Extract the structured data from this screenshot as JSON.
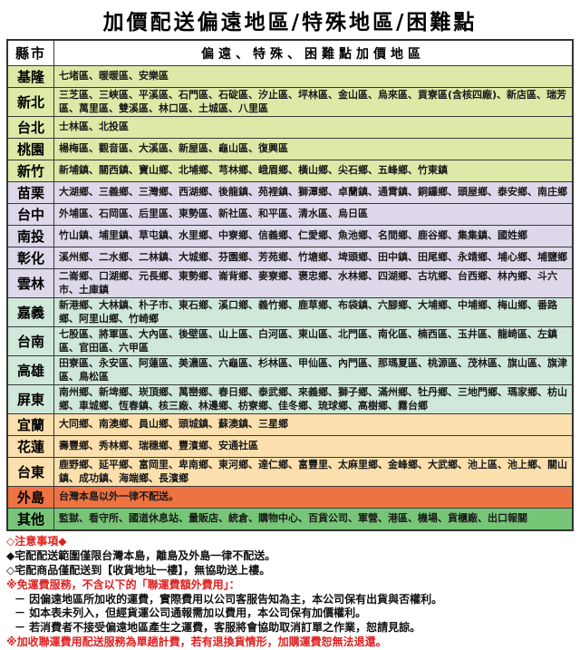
{
  "title": "加價配送偏遠地區/特殊地區/困難點",
  "colors": {
    "green_yellow": "#dde9a7",
    "lavender": "#ded8ea",
    "mint": "#cfe8da",
    "cream": "#fbe0ae",
    "orange": "#ee7342",
    "green": "#77c678",
    "header_bg": "#ffffff",
    "note_red": "#e02121",
    "border": "#3a3a3a"
  },
  "table": {
    "header": {
      "county_col": "縣市",
      "areas_col": "偏遠、特殊、困難點加價地區"
    },
    "rows": [
      {
        "county": "基隆",
        "group": "green_yellow",
        "areas": "七堵區、暖暖區、安樂區"
      },
      {
        "county": "新北",
        "group": "green_yellow",
        "areas": "三芝區、三峽區、平溪區、石門區、石碇區、汐止區、坪林區、金山區、烏來區、貢寮區(含核四廠)、新店區、瑞芳區、萬里區、雙溪區、林口區、土城區、八里區"
      },
      {
        "county": "台北",
        "group": "green_yellow",
        "areas": "士林區、北投區"
      },
      {
        "county": "桃園",
        "group": "green_yellow",
        "areas": "楊梅區、觀音區、大溪區、新屋區、龜山區、復興區"
      },
      {
        "county": "新竹",
        "group": "green_yellow",
        "areas": "新埔鎮、關西鎮、寶山鄉、北埔鄉、芎林鄉、峨眉鄉、橫山鄉、尖石鄉、五峰鄉、竹東鎮"
      },
      {
        "county": "苗栗",
        "group": "lavender",
        "areas": "大湖鄉、三義鄉、三灣鄉、西湖鄉、後龍鎮、苑裡鎮、獅潭鄉、卓蘭鎮、通霄鎮、銅鑼鄉、頭屋鄉、泰安鄉、南庄鄉"
      },
      {
        "county": "台中",
        "group": "lavender",
        "areas": "外埔區、石岡區、后里區、東勢區、新社區、和平區、清水區、烏日區"
      },
      {
        "county": "南投",
        "group": "lavender",
        "areas": "竹山鎮、埔里鎮、草屯鎮、水里鄉、中寮鄉、信義鄉、仁愛鄉、魚池鄉、名間鄉、鹿谷鄉、集集鎮、國姓鄉"
      },
      {
        "county": "彰化",
        "group": "lavender",
        "areas": "溪州鄉、二水鄉、二林鎮、大城鄉、芬園鄉、芳苑鄉、竹塘鄉、埤頭鄉、田中鎮、田尾鄉、永靖鄉、埔心鄉、埔鹽鄉"
      },
      {
        "county": "雲林",
        "group": "lavender",
        "areas": "二崙鄉、口湖鄉、元長鄉、東勢鄉、崙背鄉、麥寮鄉、褒忠鄉、水林鄉、四湖鄉、古坑鄉、台西鄉、林內鄉、斗六市、土庫鎮"
      },
      {
        "county": "嘉義",
        "group": "mint",
        "areas": "新港鄉、大林鎮、朴子市、東石鄉、溪口鄉、義竹鄉、鹿草鄉、布袋鎮、六腳鄉、大埔鄉、中埔鄉、梅山鄉、番路鄉、阿里山鄉、竹崎鄉"
      },
      {
        "county": "台南",
        "group": "mint",
        "areas": "七股區、將軍區、大內區、後壁區、山上區、白河區、東山區、北門區、南化區、楠西區、玉井區、龍崎區、左鎮區、官田區、六甲區"
      },
      {
        "county": "高雄",
        "group": "mint",
        "areas": "田寮區、永安區、阿蓮區、美濃區、六龜區、杉林區、甲仙區、內門區、那瑪夏區、桃源區、茂林區、旗山區、旗津區、鳥松區"
      },
      {
        "county": "屏東",
        "group": "mint",
        "areas": "南州鄉、新埤鄉、崁頂鄉、萬巒鄉、春日鄉、泰武鄉、來義鄉、獅子鄉、滿州鄉、牡丹鄉、三地門鄉、瑪家鄉、枋山鄉、車城鄉、恆春鎮、核三廠、林邊鄉、枋寮鄉、佳冬鄉、琉球鄉、高樹鄉、霧台鄉"
      },
      {
        "county": "宜蘭",
        "group": "cream",
        "areas": "大同鄉、南澳鄉、員山鄉、頭城鎮、蘇澳鎮、三星鄉"
      },
      {
        "county": "花蓮",
        "group": "cream",
        "areas": "壽豐鄉、秀林鄉、瑞穗鄉、豐濱鄉、安通社區"
      },
      {
        "county": "台東",
        "group": "cream",
        "areas": "鹿野鄉、延平鄉、富岡里、卑南鄉、東河鄉、達仁鄉、富豐里、太麻里鄉、金峰鄉、大武鄉、池上區、池上鄉、關山鎮、成功鎮、海端鄉、長濱鄉"
      },
      {
        "county": "外島",
        "group": "orange",
        "areas": "台灣本島以外一律不配送。"
      },
      {
        "county": "其他",
        "group": "green",
        "areas": "監獄、看守所、國道休息站、量販店、統倉、購物中心、百貨公司、軍營、港區、機場、貨櫃廠、出口報關"
      }
    ]
  },
  "notes": [
    {
      "text": "◇注意事項◆",
      "color": "red",
      "indent": false
    },
    {
      "text": "◆宅配配送範圍僅限台灣本島，離島及外島一律不配送。",
      "color": "black",
      "indent": false
    },
    {
      "text": "◇宅配商品僅配送到【收貨地址一樓】，無協助送上樓。",
      "color": "black",
      "indent": false
    },
    {
      "text": "※免運費服務，不含以下的「聯運費額外費用」：",
      "color": "red",
      "indent": false
    },
    {
      "text": "－ 因偏遠地區所加收的運費，實際費用以公司客服告知為主，本公司保有出貨與否權利。",
      "color": "black",
      "indent": true
    },
    {
      "text": "－ 如本表未列入，但經貨運公司通報需加以費用，本公司保有加價權利。",
      "color": "black",
      "indent": true
    },
    {
      "text": "－ 若消費者不接受偏遠地區產生之運費，客服將會協助取消訂單之作業，恕請見諒。",
      "color": "black",
      "indent": true
    },
    {
      "text": "※加收聯運費用配送服務為單趟計費，若有退換貨情形，加購運費恕無法退還。",
      "color": "red",
      "indent": false
    }
  ]
}
